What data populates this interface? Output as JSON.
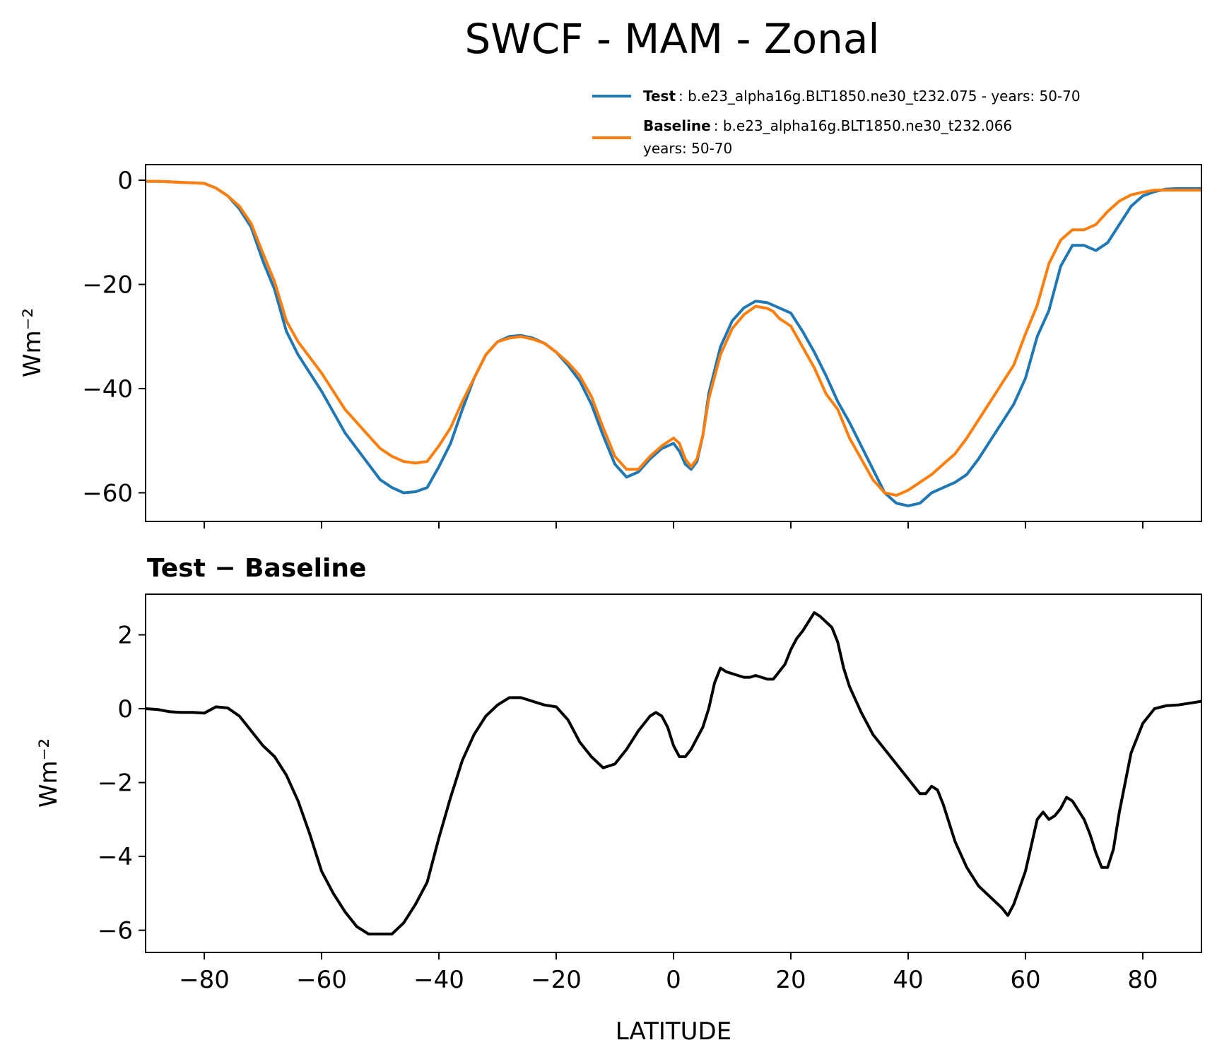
{
  "figure": {
    "title": "SWCF - MAM - Zonal",
    "xlabel": "LATITUDE"
  },
  "legend": {
    "test_name": "Test",
    "test_desc": ": b.e23_alpha16g.BLT1850.ne30_t232.075 - years: 50-70",
    "baseline_name": "Baseline",
    "baseline_desc": ": b.e23_alpha16g.BLT1850.ne30_t232.066",
    "baseline_desc2": "years: 50-70"
  },
  "colors": {
    "test": "#1f77b4",
    "baseline": "#ff7f0e",
    "diff": "#000000"
  },
  "chart_data": [
    {
      "type": "line",
      "title": "",
      "xlabel": "",
      "ylabel": "Wm⁻²",
      "xlim": [
        -90,
        90
      ],
      "ylim": [
        -65.5,
        3
      ],
      "yticks": [
        0,
        -20,
        -40,
        -60
      ],
      "ytick_labels": [
        "0",
        "−20",
        "−40",
        "−60"
      ],
      "xticks": [
        -80,
        -60,
        -40,
        -20,
        0,
        20,
        40,
        60,
        80
      ],
      "x": [
        -90,
        -88,
        -86,
        -84,
        -82,
        -80,
        -78,
        -76,
        -74,
        -72,
        -70,
        -68,
        -66,
        -64,
        -62,
        -60,
        -58,
        -56,
        -54,
        -52,
        -50,
        -48,
        -46,
        -44,
        -42,
        -40,
        -38,
        -36,
        -34,
        -32,
        -30,
        -28,
        -26,
        -24,
        -22,
        -20,
        -18,
        -16,
        -14,
        -12,
        -10,
        -8,
        -6,
        -4,
        -2,
        0,
        1,
        2,
        3,
        4,
        5,
        6,
        8,
        10,
        12,
        14,
        16,
        17,
        18,
        20,
        22,
        24,
        26,
        28,
        30,
        32,
        34,
        36,
        38,
        40,
        42,
        44,
        46,
        48,
        50,
        52,
        54,
        56,
        58,
        60,
        62,
        64,
        66,
        68,
        70,
        72,
        74,
        76,
        78,
        80,
        82,
        84,
        86,
        88,
        90
      ],
      "series": [
        {
          "name": "Test",
          "color": "#1f77b4",
          "values": [
            -0.2,
            -0.2,
            -0.3,
            -0.4,
            -0.5,
            -0.6,
            -1.5,
            -3.0,
            -5.5,
            -9.0,
            -15.5,
            -21.0,
            -29.0,
            -33.5,
            -37.0,
            -40.5,
            -44.5,
            -48.5,
            -51.5,
            -54.5,
            -57.5,
            -59.0,
            -60.0,
            -59.8,
            -59.0,
            -55.0,
            -50.5,
            -44.0,
            -38.0,
            -33.5,
            -31.0,
            -30.0,
            -29.8,
            -30.3,
            -31.3,
            -33.0,
            -35.5,
            -38.5,
            -43.0,
            -49.0,
            -54.5,
            -57.0,
            -56.0,
            -53.5,
            -51.5,
            -50.5,
            -52.0,
            -54.5,
            -55.5,
            -54.0,
            -49.0,
            -41.0,
            -32.0,
            -27.0,
            -24.5,
            -23.2,
            -23.5,
            -24.0,
            -24.5,
            -25.5,
            -29.0,
            -33.0,
            -37.5,
            -42.5,
            -46.5,
            -51.0,
            -55.5,
            -60.0,
            -62.0,
            -62.5,
            -62.0,
            -60.0,
            -59.0,
            -58.0,
            -56.5,
            -53.5,
            -50.0,
            -46.5,
            -43.0,
            -38.0,
            -30.0,
            -25.0,
            -16.5,
            -12.5,
            -12.5,
            -13.5,
            -12.0,
            -8.5,
            -5.0,
            -3.0,
            -2.2,
            -1.7,
            -1.6,
            -1.6,
            -1.6
          ]
        },
        {
          "name": "Baseline",
          "color": "#ff7f0e",
          "values": [
            -0.2,
            -0.2,
            -0.3,
            -0.4,
            -0.5,
            -0.6,
            -1.5,
            -3.0,
            -5.0,
            -8.3,
            -14.0,
            -19.5,
            -27.0,
            -31.0,
            -34.0,
            -37.0,
            -40.5,
            -44.0,
            -46.5,
            -49.0,
            -51.5,
            -53.0,
            -54.0,
            -54.3,
            -54.0,
            -51.0,
            -47.5,
            -42.5,
            -38.0,
            -33.5,
            -31.0,
            -30.3,
            -30.0,
            -30.5,
            -31.3,
            -33.0,
            -35.0,
            -37.5,
            -41.5,
            -47.5,
            -53.0,
            -55.5,
            -55.5,
            -53.0,
            -51.0,
            -49.5,
            -50.5,
            -53.5,
            -55.0,
            -53.5,
            -49.0,
            -42.0,
            -33.5,
            -28.5,
            -25.8,
            -24.2,
            -24.6,
            -25.2,
            -26.5,
            -28.0,
            -32.0,
            -36.0,
            -41.0,
            -44.0,
            -49.5,
            -53.5,
            -57.5,
            -60.0,
            -60.5,
            -59.5,
            -58.0,
            -56.5,
            -54.5,
            -52.5,
            -49.5,
            -46.0,
            -42.5,
            -39.0,
            -35.5,
            -29.5,
            -24.0,
            -16.0,
            -11.5,
            -9.5,
            -9.5,
            -8.5,
            -6.0,
            -4.0,
            -2.8,
            -2.3,
            -1.9,
            -1.9,
            -1.9,
            -1.9,
            -1.9
          ]
        }
      ]
    },
    {
      "type": "line",
      "title": "Test − Baseline",
      "xlabel": "LATITUDE",
      "ylabel": "Wm⁻²",
      "xlim": [
        -90,
        90
      ],
      "ylim": [
        -6.6,
        3.1
      ],
      "yticks": [
        2,
        0,
        -2,
        -4,
        -6
      ],
      "ytick_labels": [
        "2",
        "0",
        "−2",
        "−4",
        "−6"
      ],
      "xticks": [
        -80,
        -60,
        -40,
        -20,
        0,
        20,
        40,
        60,
        80
      ],
      "xtick_labels": [
        "−80",
        "−60",
        "−40",
        "−20",
        "0",
        "20",
        "40",
        "60",
        "80"
      ],
      "x": [
        -90,
        -88,
        -86,
        -84,
        -82,
        -80,
        -78,
        -76,
        -74,
        -72,
        -70,
        -68,
        -66,
        -64,
        -62,
        -60,
        -58,
        -56,
        -54,
        -52,
        -50,
        -48,
        -46,
        -44,
        -42,
        -40,
        -38,
        -36,
        -34,
        -32,
        -30,
        -28,
        -26,
        -24,
        -22,
        -20,
        -18,
        -16,
        -14,
        -12,
        -10,
        -8,
        -6,
        -4,
        -3,
        -2,
        -1,
        0,
        1,
        2,
        3,
        4,
        5,
        6,
        7,
        8,
        9,
        10,
        11,
        12,
        13,
        14,
        15,
        16,
        17,
        18,
        19,
        20,
        21,
        22,
        23,
        24,
        25,
        26,
        27,
        28,
        29,
        30,
        32,
        34,
        36,
        38,
        40,
        42,
        43,
        44,
        45,
        46,
        48,
        50,
        52,
        54,
        56,
        57,
        58,
        60,
        61,
        62,
        63,
        64,
        65,
        66,
        67,
        68,
        70,
        71,
        72,
        73,
        74,
        75,
        76,
        78,
        80,
        82,
        84,
        86,
        88,
        90
      ],
      "series": [
        {
          "name": "Test − Baseline",
          "color": "#000000",
          "values": [
            0.0,
            -0.02,
            -0.08,
            -0.1,
            -0.1,
            -0.12,
            0.05,
            0.02,
            -0.2,
            -0.6,
            -1.0,
            -1.3,
            -1.8,
            -2.5,
            -3.4,
            -4.4,
            -5.0,
            -5.5,
            -5.9,
            -6.1,
            -6.1,
            -6.1,
            -5.8,
            -5.3,
            -4.7,
            -3.5,
            -2.4,
            -1.4,
            -0.7,
            -0.2,
            0.1,
            0.3,
            0.3,
            0.2,
            0.1,
            0.05,
            -0.3,
            -0.9,
            -1.3,
            -1.6,
            -1.5,
            -1.1,
            -0.6,
            -0.2,
            -0.1,
            -0.2,
            -0.5,
            -1.0,
            -1.3,
            -1.3,
            -1.1,
            -0.8,
            -0.5,
            0.0,
            0.7,
            1.1,
            1.0,
            0.95,
            0.9,
            0.85,
            0.85,
            0.9,
            0.85,
            0.8,
            0.8,
            1.0,
            1.2,
            1.6,
            1.9,
            2.1,
            2.35,
            2.6,
            2.5,
            2.35,
            2.2,
            1.8,
            1.1,
            0.6,
            -0.1,
            -0.7,
            -1.1,
            -1.5,
            -1.9,
            -2.3,
            -2.3,
            -2.1,
            -2.2,
            -2.6,
            -3.6,
            -4.3,
            -4.8,
            -5.1,
            -5.4,
            -5.6,
            -5.3,
            -4.4,
            -3.7,
            -3.0,
            -2.8,
            -3.0,
            -2.9,
            -2.7,
            -2.4,
            -2.5,
            -3.0,
            -3.4,
            -3.9,
            -4.3,
            -4.3,
            -3.8,
            -2.8,
            -1.2,
            -0.4,
            0.0,
            0.08,
            0.1,
            0.15,
            0.2
          ]
        }
      ]
    }
  ]
}
